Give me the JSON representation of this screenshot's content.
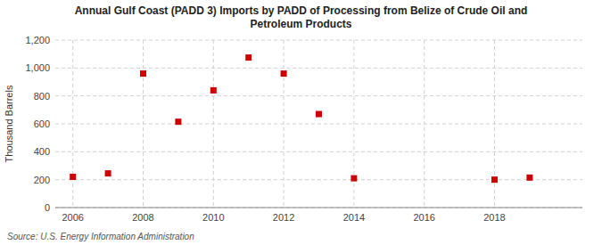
{
  "chart_data": {
    "type": "scatter",
    "title": "Annual Gulf Coast (PADD 3) Imports by PADD of Processing from Belize of Crude Oil and\nPetroleum Products",
    "y_label": "Thousand Barrels",
    "annotations": [
      "Source: U.S. Energy Information Administration"
    ],
    "x": [
      2006,
      2007,
      2008,
      2009,
      2010,
      2011,
      2012,
      2013,
      2014,
      2018,
      2019
    ],
    "values": [
      220,
      245,
      960,
      615,
      840,
      1075,
      960,
      670,
      210,
      200,
      215
    ],
    "color": "#cc0000",
    "marker": "square",
    "xlim": [
      2005.5,
      2020.5
    ],
    "xticks": [
      2006,
      2008,
      2010,
      2012,
      2014,
      2016,
      2018
    ],
    "ylim": [
      0,
      1200
    ],
    "yticks": [
      0,
      200,
      400,
      600,
      800,
      {
        "value": 1000,
        "label": "1,000"
      },
      {
        "value": 1200,
        "label": "1,200"
      }
    ],
    "grid": true
  }
}
